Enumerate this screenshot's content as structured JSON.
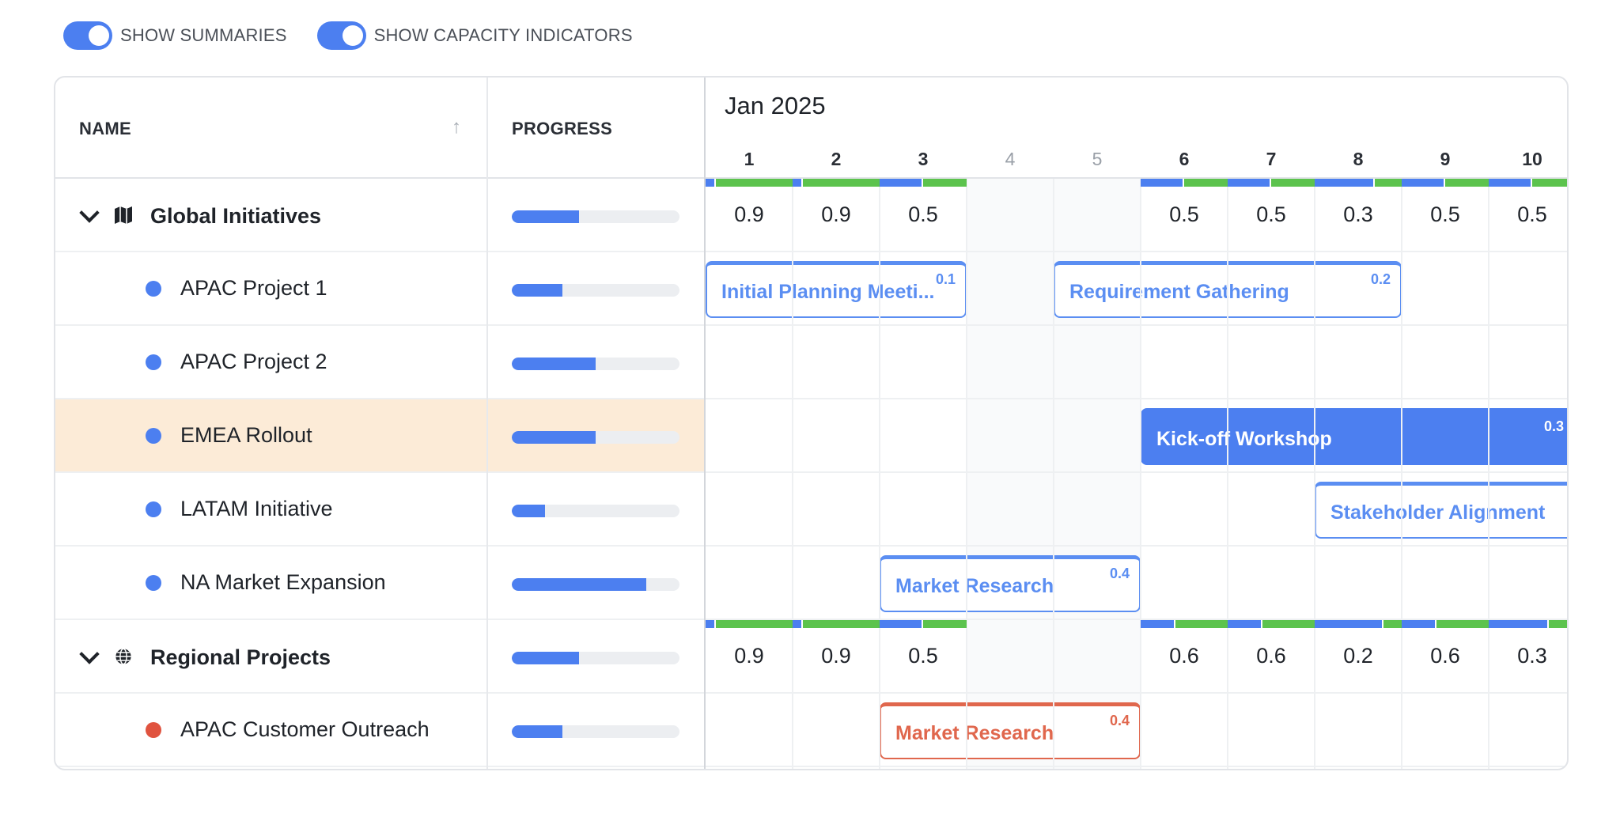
{
  "toolbar": {
    "toggles": [
      {
        "label": "SHOW SUMMARIES",
        "on": true
      },
      {
        "label": "SHOW CAPACITY INDICATORS",
        "on": true
      }
    ]
  },
  "columns": {
    "name": "NAME",
    "progress": "PROGRESS"
  },
  "timeline": {
    "month": "Jan 2025",
    "days": [
      "1",
      "2",
      "3",
      "4",
      "5",
      "6",
      "7",
      "8",
      "9",
      "10"
    ]
  },
  "groups": [
    {
      "name": "Global Initiatives",
      "icon": "map-icon",
      "progress": 0.4,
      "summaries": [
        "0.9",
        "0.9",
        "0.5",
        "",
        "",
        "0.5",
        "0.5",
        "0.3",
        "0.5",
        "0.5"
      ]
    },
    {
      "name": "Regional Projects",
      "icon": "globe-icon",
      "progress": 0.4,
      "summaries": [
        "0.9",
        "0.9",
        "0.5",
        "",
        "",
        "0.6",
        "0.6",
        "0.2",
        "0.6",
        "0.3"
      ]
    }
  ],
  "tasks": [
    {
      "name": "APAC Project 1",
      "color": "#4c7ff0",
      "progress": 0.3
    },
    {
      "name": "APAC Project 2",
      "color": "#4c7ff0",
      "progress": 0.5
    },
    {
      "name": "EMEA Rollout",
      "color": "#4c7ff0",
      "progress": 0.5
    },
    {
      "name": "LATAM Initiative",
      "color": "#4c7ff0",
      "progress": 0.2
    },
    {
      "name": "NA Market Expansion",
      "color": "#4c7ff0",
      "progress": 0.8
    },
    {
      "name": "APAC Customer Outreach",
      "color": "#e0533f",
      "progress": 0.3
    }
  ],
  "events": [
    {
      "name": "Initial Planning Meeti...",
      "value": "0.1"
    },
    {
      "name": "Requirement Gathering",
      "value": "0.2"
    },
    {
      "name": "Kick-off Workshop",
      "value": "0.3"
    },
    {
      "name": "Stakeholder Alignment",
      "value": ""
    },
    {
      "name": "Market Research",
      "value": "0.4"
    },
    {
      "name": "Market Research",
      "value": "0.4"
    }
  ],
  "colors": {
    "accent": "#4c7ff0",
    "capacity_ok": "#5cc34d",
    "highlight_row": "#fcebd7",
    "danger": "#e0533f"
  }
}
